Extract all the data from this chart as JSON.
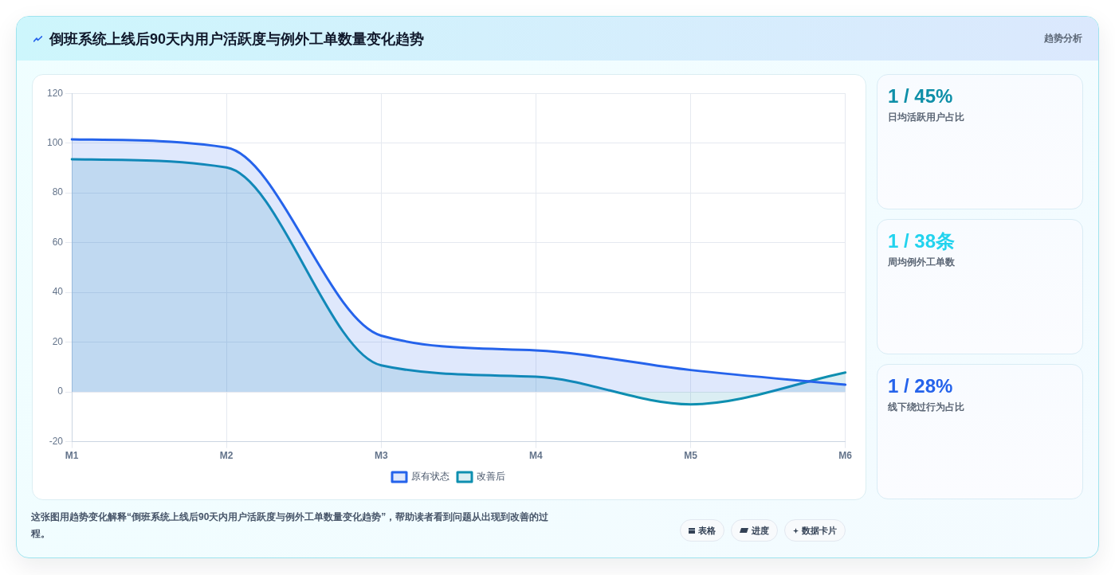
{
  "chart_data": {
    "type": "area",
    "title": "倒班系统上线后90天内用户活跃度与例外工单数量变化趋势",
    "subtitle": "趋势分析",
    "categories": [
      "M1",
      "M2",
      "M3",
      "M4",
      "M5",
      "M6"
    ],
    "series": [
      {
        "name": "原有状态",
        "color": "#2563eb",
        "values": [
          101.5,
          98.2,
          22.6,
          16.7,
          8.8,
          2.9
        ]
      },
      {
        "name": "改善后",
        "color": "#0e8fb0",
        "values": [
          93.5,
          90.2,
          10.7,
          6.1,
          -5,
          7.8
        ]
      }
    ],
    "ylim": [
      -20,
      120
    ],
    "yticks": [
      -20,
      0,
      20,
      40,
      60,
      80,
      100,
      120
    ],
    "grid": true,
    "legend": "bottom",
    "annotations": [
      "1 / 45%",
      "日均活跃用户占比",
      "1 / 38条",
      "周均例外工单数",
      "1 / 28%",
      "线下绕过行为占比",
      "这张图用趋势变化解释“倒班系统上线后90天内用户活跃度与例外工单数量变化趋势”，帮助读者看到问题从出现到改善的过程。",
      "表格",
      "进度",
      "数据卡片"
    ]
  }
}
